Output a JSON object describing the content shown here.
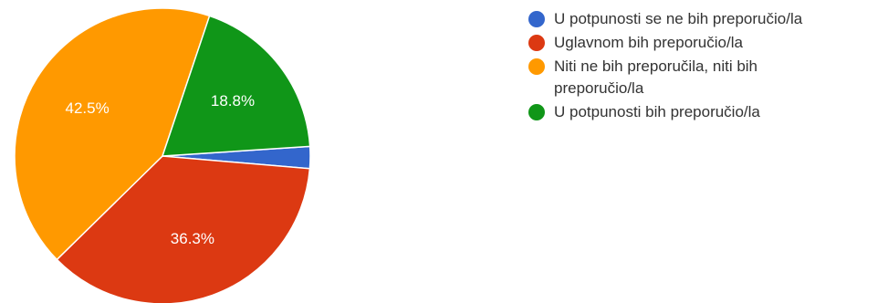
{
  "chart_data": {
    "type": "pie",
    "title": "",
    "slices": [
      {
        "label": "U potpunosti se ne bih preporučio/la",
        "value": 2.4,
        "color": "#3366cc",
        "data_label": ""
      },
      {
        "label": "Uglavnom bih preporučio/la",
        "value": 36.3,
        "color": "#dc3912",
        "data_label": "36.3%"
      },
      {
        "label": "Niti ne bih preporučila, niti bih preporučio/la",
        "value": 42.5,
        "color": "#ff9900",
        "data_label": "42.5%"
      },
      {
        "label": "U potpunosti bih preporučio/la",
        "value": 18.8,
        "color": "#109618",
        "data_label": "18.8%"
      }
    ],
    "legend_position": "right"
  }
}
